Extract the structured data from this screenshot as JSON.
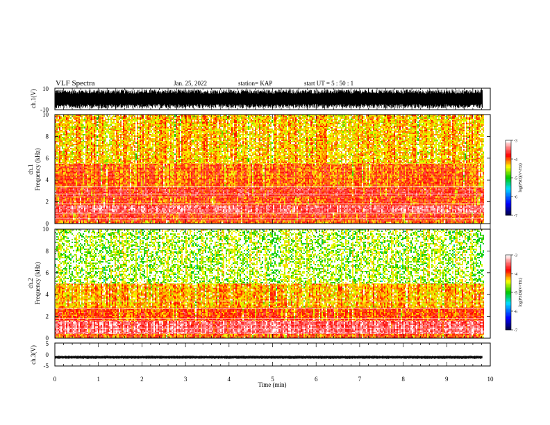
{
  "header": {
    "title": "VLF Spectra",
    "date": "Jan. 25, 2022",
    "station": "station= KAP",
    "start": "start  UT  =   5  : 50 : 1"
  },
  "chart_data": [
    {
      "type": "line",
      "panel": "ch1-waveform",
      "ylabel": "ch.1(V)",
      "ylim": [
        -10,
        10
      ],
      "yticks": [
        "10",
        "-10"
      ],
      "xlim": [
        0,
        10
      ],
      "description_values": {
        "typical_min": -9,
        "typical_max": 9
      },
      "color": "#000000"
    },
    {
      "type": "heatmap",
      "panel": "ch1-spectrogram",
      "ylabel_line1": "ch.1",
      "ylabel_line2": "Frequency  (kHz)",
      "ylim": [
        0,
        10
      ],
      "yticks": [
        "0",
        "2",
        "4",
        "6",
        "8",
        "10"
      ],
      "xlim": [
        0,
        9.85
      ],
      "colorbar": {
        "label": "log(PSD)(V²/Hz)",
        "range": [
          -7,
          -3
        ],
        "ticks": [
          "-3",
          "-4",
          "-5",
          "-6",
          "-7"
        ]
      },
      "bands": [
        {
          "f_low": 0.0,
          "f_high": 0.3,
          "level": -4.0
        },
        {
          "f_low": 0.3,
          "f_high": 1.0,
          "level": -3.8
        },
        {
          "f_low": 1.0,
          "f_high": 1.7,
          "level": -3.4
        },
        {
          "f_low": 1.7,
          "f_high": 2.5,
          "level": -3.9
        },
        {
          "f_low": 2.5,
          "f_high": 3.3,
          "level": -3.7
        },
        {
          "f_low": 3.3,
          "f_high": 5.5,
          "level": -4.0
        },
        {
          "f_low": 5.5,
          "f_high": 10.0,
          "level": -4.3
        }
      ]
    },
    {
      "type": "heatmap",
      "panel": "ch2-spectrogram",
      "ylabel_line1": "ch.2",
      "ylabel_line2": "Frequency  (kHz)",
      "ylim": [
        0,
        10
      ],
      "yticks": [
        "0",
        "2",
        "4",
        "6",
        "8",
        "10"
      ],
      "xlim": [
        0,
        9.85
      ],
      "colorbar": {
        "label": "log(PSD)(V²/Hz)",
        "range": [
          -7,
          -3
        ],
        "ticks": [
          "-3",
          "-4",
          "-5",
          "-6",
          "-7"
        ]
      },
      "bands": [
        {
          "f_low": 0.0,
          "f_high": 0.4,
          "level": -4.0
        },
        {
          "f_low": 0.4,
          "f_high": 1.6,
          "level": -3.4
        },
        {
          "f_low": 1.6,
          "f_high": 2.8,
          "level": -3.9
        },
        {
          "f_low": 2.8,
          "f_high": 5.0,
          "level": -4.2
        },
        {
          "f_low": 5.0,
          "f_high": 10.0,
          "level": -4.7
        }
      ]
    },
    {
      "type": "line",
      "panel": "ch3-waveform",
      "ylabel": "ch.3(V)",
      "ylim": [
        -5,
        5
      ],
      "yticks": [
        "5",
        "0",
        "-5"
      ],
      "xlim": [
        0,
        10
      ],
      "baseline": -1.2,
      "color": "#000000"
    }
  ],
  "x_axis": {
    "label": "Time  (min)",
    "range": [
      0,
      10
    ],
    "ticks": [
      "0",
      "1",
      "2",
      "3",
      "4",
      "5",
      "6",
      "7",
      "8",
      "9",
      "10"
    ]
  }
}
